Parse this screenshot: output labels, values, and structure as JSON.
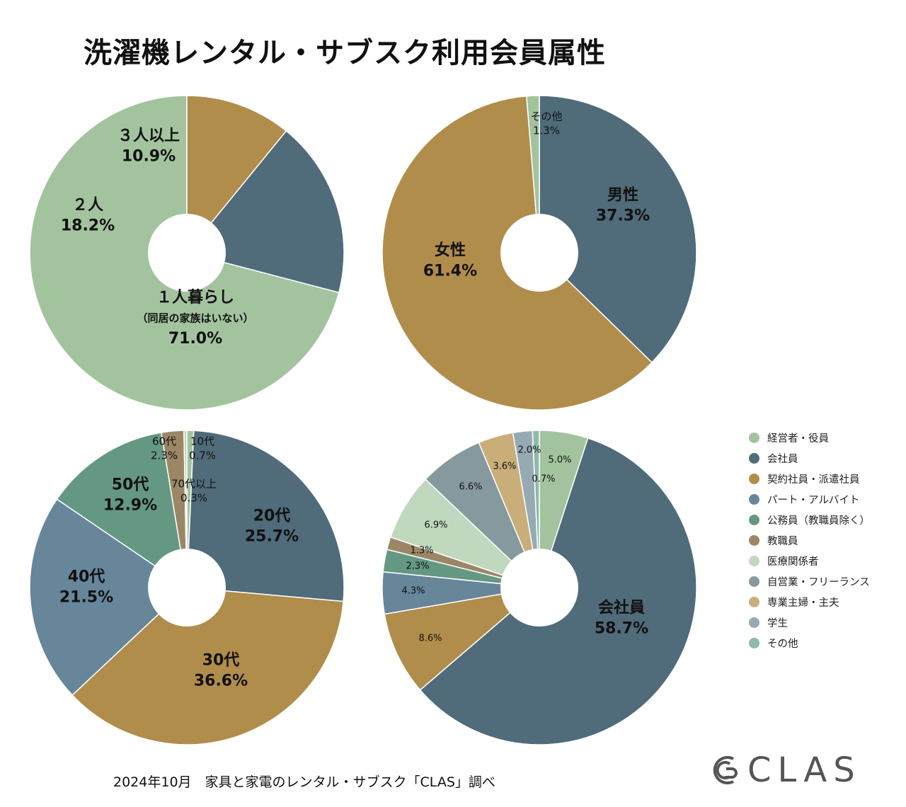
{
  "title": "洗濯機レンタル・サブスク利用会員属性",
  "footer": "2024年10月　家具と家電のレンタル・サブスク「CLAS」調べ",
  "logo_text": "CLAS",
  "chart_data": [
    {
      "type": "pie",
      "name": "household",
      "slices": [
        {
          "label": "１人暮らし",
          "sublabel": "（同居の家族はいない）",
          "value": 71.0,
          "value_text": "71.0%",
          "color": "#a3c39e"
        },
        {
          "label": "２人",
          "value": 18.2,
          "value_text": "18.2%",
          "color": "#506b7a"
        },
        {
          "label": "３人以上",
          "value": 10.9,
          "value_text": "10.9%",
          "color": "#b18d4b"
        }
      ]
    },
    {
      "type": "pie",
      "name": "gender",
      "slices": [
        {
          "label": "男性",
          "value": 37.3,
          "value_text": "37.3%",
          "color": "#506b7a"
        },
        {
          "label": "女性",
          "value": 61.4,
          "value_text": "61.4%",
          "color": "#b18d4b"
        },
        {
          "label": "その他",
          "value": 1.3,
          "value_text": "1.3%",
          "color": "#a3c39e"
        }
      ]
    },
    {
      "type": "pie",
      "name": "age",
      "slices": [
        {
          "label": "10代",
          "value": 0.7,
          "value_text": "0.7%",
          "color": "#a3c39e"
        },
        {
          "label": "20代",
          "value": 25.7,
          "value_text": "25.7%",
          "color": "#506b7a"
        },
        {
          "label": "30代",
          "value": 36.6,
          "value_text": "36.6%",
          "color": "#b18d4b"
        },
        {
          "label": "40代",
          "value": 21.5,
          "value_text": "21.5%",
          "color": "#67869a"
        },
        {
          "label": "50代",
          "value": 12.9,
          "value_text": "12.9%",
          "color": "#649883"
        },
        {
          "label": "60代",
          "value": 2.3,
          "value_text": "2.3%",
          "color": "#9b8766"
        },
        {
          "label": "70代以上",
          "value": 0.3,
          "value_text": "0.3%",
          "color": "#bcd5bc"
        }
      ]
    },
    {
      "type": "pie",
      "name": "occupation",
      "legend_position": "right",
      "slices": [
        {
          "label": "経営者・役員",
          "value": 5.0,
          "value_text": "5.0%",
          "color": "#a3c39e"
        },
        {
          "label": "会社員",
          "value": 58.7,
          "value_text": "58.7%",
          "color": "#506b7a"
        },
        {
          "label": "契約社員・派遣社員",
          "value": 8.6,
          "value_text": "8.6%",
          "color": "#b18d4b"
        },
        {
          "label": "パート・アルバイト",
          "value": 4.3,
          "value_text": "4.3%",
          "color": "#67869a"
        },
        {
          "label": "公務員（教職員除く）",
          "value": 2.3,
          "value_text": "2.3%",
          "color": "#649883"
        },
        {
          "label": "教職員",
          "value": 1.3,
          "value_text": "1.3%",
          "color": "#9b8766"
        },
        {
          "label": "医療関係者",
          "value": 6.9,
          "value_text": "6.9%",
          "color": "#c0d8be"
        },
        {
          "label": "自営業・フリーランス",
          "value": 6.6,
          "value_text": "6.6%",
          "color": "#86999e"
        },
        {
          "label": "専業主婦・主夫",
          "value": 3.6,
          "value_text": "3.6%",
          "color": "#c9ae7a"
        },
        {
          "label": "学生",
          "value": 2.0,
          "value_text": "2.0%",
          "color": "#96aab3"
        },
        {
          "label": "その他",
          "value": 0.7,
          "value_text": "0.7%",
          "color": "#8fb9a8"
        }
      ]
    }
  ]
}
